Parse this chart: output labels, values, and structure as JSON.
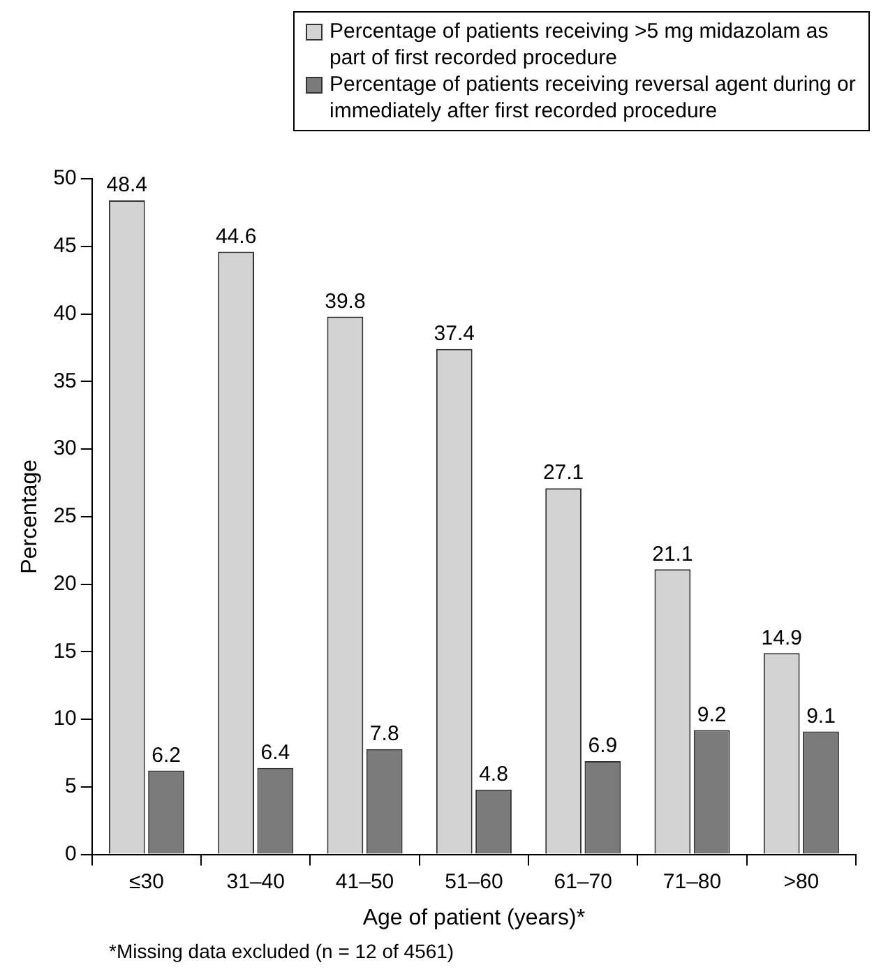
{
  "chart_data": {
    "type": "bar",
    "categories": [
      "≤30",
      "31–40",
      "41–50",
      "51–60",
      "61–70",
      "71–80",
      ">80"
    ],
    "series": [
      {
        "name": "Percentage of patients receiving >5 mg midazolam as part of first recorded procedure",
        "color": "#d3d3d3",
        "values": [
          48.4,
          44.6,
          39.8,
          37.4,
          27.1,
          21.1,
          14.9
        ]
      },
      {
        "name": "Percentage of patients receiving reversal agent during or immediately after first recorded procedure",
        "color": "#7b7b7b",
        "values": [
          6.2,
          6.4,
          7.8,
          4.8,
          6.9,
          9.2,
          9.1
        ]
      }
    ],
    "xlabel": "Age of patient (years)*",
    "ylabel": "Percentage",
    "ylim": [
      0,
      50
    ],
    "yticks": [
      0,
      5,
      10,
      15,
      20,
      25,
      30,
      35,
      40,
      45,
      50
    ],
    "grid": false,
    "legend": "top right",
    "data_labels": true,
    "annotations": [
      "*Missing data excluded (n = 12 of 4561)"
    ]
  }
}
